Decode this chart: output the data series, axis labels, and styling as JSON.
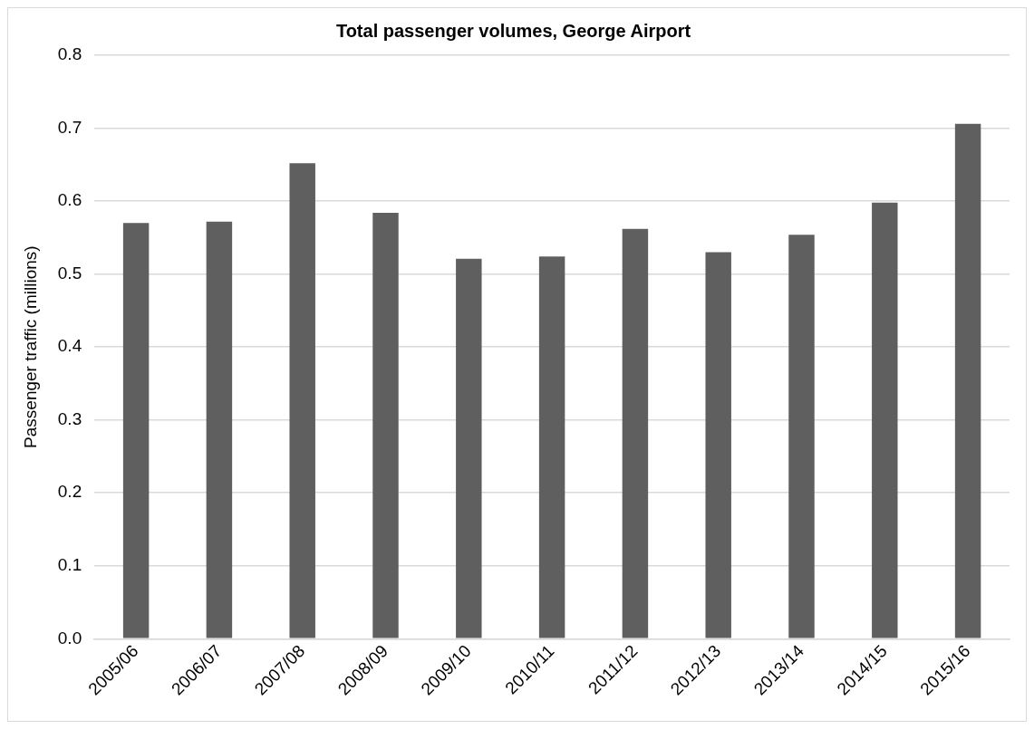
{
  "chart_data": {
    "type": "bar",
    "title": "Total passenger volumes, George Airport",
    "ylabel": "Passenger traffic (millions)",
    "categories": [
      "2005/06",
      "2006/07",
      "2007/08",
      "2008/09",
      "2009/10",
      "2010/11",
      "2011/12",
      "2012/13",
      "2013/14",
      "2014/15",
      "2015/16"
    ],
    "values": [
      0.57,
      0.572,
      0.652,
      0.584,
      0.521,
      0.524,
      0.562,
      0.53,
      0.554,
      0.598,
      0.706
    ],
    "color": "#5f5f5f",
    "ylim": [
      0,
      0.8
    ],
    "yticks": [
      {
        "value": 0,
        "label": "0.0"
      },
      {
        "value": 0.1,
        "label": "0.1"
      },
      {
        "value": 0.2,
        "label": "0.2"
      },
      {
        "value": 0.3,
        "label": "0.3"
      },
      {
        "value": 0.4,
        "label": "0.4"
      },
      {
        "value": 0.5,
        "label": "0.5"
      },
      {
        "value": 0.6,
        "label": "0.6"
      },
      {
        "value": 0.7,
        "label": "0.7"
      },
      {
        "value": 0.8,
        "label": "0.8"
      }
    ],
    "grid": "y",
    "legend": false
  }
}
